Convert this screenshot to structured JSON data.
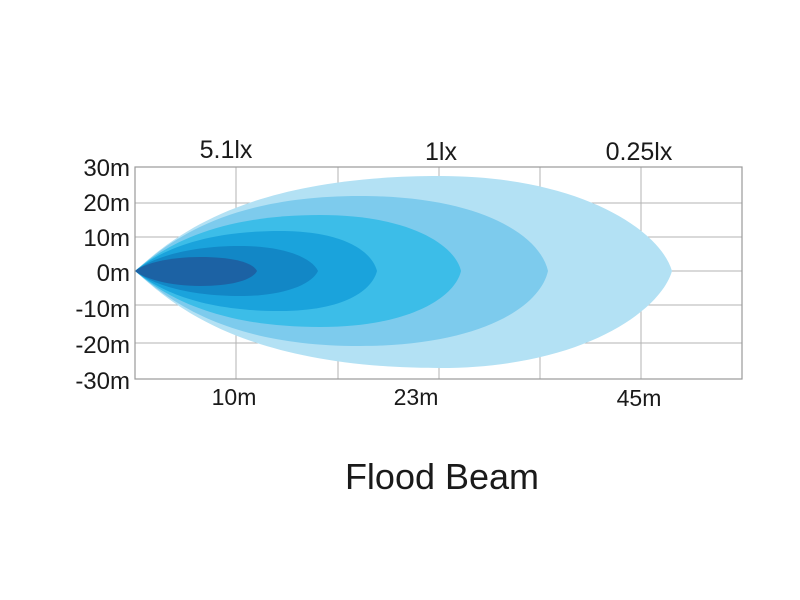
{
  "title": "Flood Beam",
  "top_labels": [
    "5.1lx",
    "1lx",
    "0.25lx"
  ],
  "y_ticks": [
    "30m",
    "20m",
    "10m",
    "0m",
    "-10m",
    "-20m",
    "-30m"
  ],
  "x_ticks": [
    "10m",
    "23m",
    "45m"
  ],
  "beam_colors": [
    "#b3e1f4",
    "#7dcbed",
    "#3cbde8",
    "#1aa3dc",
    "#1287c6",
    "#1c62a4"
  ]
}
